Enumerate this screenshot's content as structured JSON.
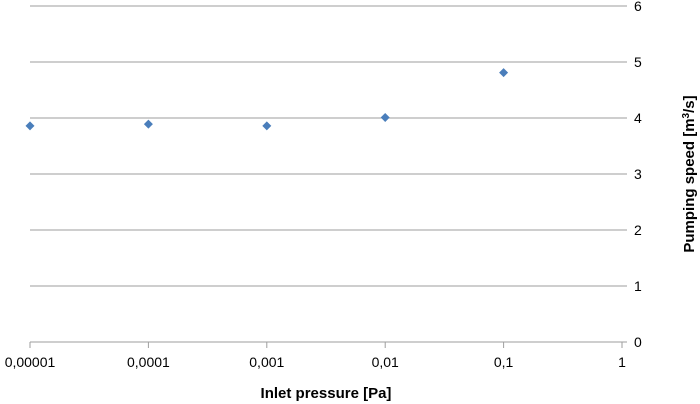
{
  "chart_data": {
    "type": "scatter",
    "title": "",
    "xlabel": "Inlet pressure [Pa]",
    "ylabel_parts": {
      "before": "Pumping speed [m",
      "sup": "3",
      "after": "/s]"
    },
    "x_scale": "log",
    "xlim": [
      1e-05,
      1
    ],
    "ylim": [
      0,
      6
    ],
    "x_tick_labels": [
      "0,00001",
      "0,0001",
      "0,001",
      "0,01",
      "0,1",
      "1"
    ],
    "y_tick_labels": [
      "0",
      "1",
      "2",
      "3",
      "4",
      "5",
      "6"
    ],
    "grid": "horizontal",
    "legend": "none",
    "marker": "diamond",
    "color": "#4a7ebb",
    "points": [
      {
        "x": 1e-05,
        "y": 3.86
      },
      {
        "x": 0.0001,
        "y": 3.89
      },
      {
        "x": 0.001,
        "y": 3.86
      },
      {
        "x": 0.01,
        "y": 4.01
      },
      {
        "x": 0.1,
        "y": 4.81
      }
    ]
  }
}
